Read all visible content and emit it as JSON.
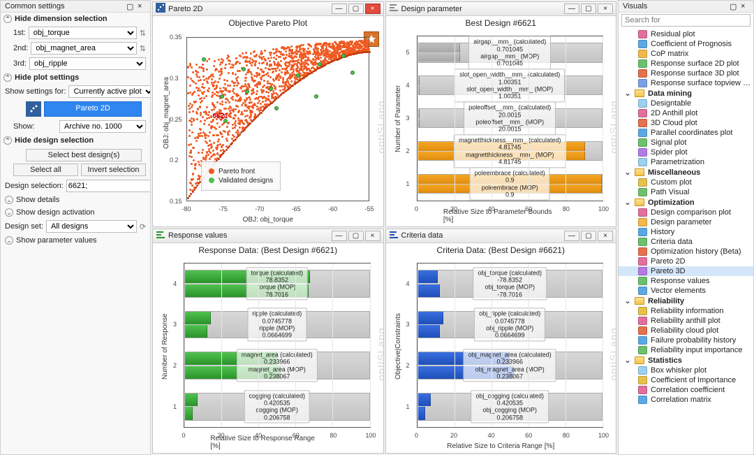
{
  "common": {
    "title": "Common settings",
    "hide_dim": "Hide dimension selection",
    "axes": {
      "first_lbl": "1st:",
      "first": "obj_torque",
      "second_lbl": "2nd:",
      "second": "obj_magnet_area",
      "third_lbl": "3rd:",
      "third": "obj_ripple"
    },
    "hide_plot": "Hide plot settings",
    "show_settings_lbl": "Show settings for:",
    "show_settings_val": "Currently active plot",
    "pareto_btn": "Pareto 2D",
    "show_lbl": "Show:",
    "show_val": "Archive no. 1000",
    "hide_design": "Hide design selection",
    "select_best": "Select best design(s)",
    "select_all": "Select all",
    "invert_sel": "Invert selection",
    "design_sel_lbl": "Design selection:",
    "design_sel_val": "6621;",
    "show_details": "Show details",
    "show_activation": "Show design activation",
    "design_set_lbl": "Design set:",
    "design_set_val": "All designs",
    "show_param": "Show parameter values"
  },
  "watermark": "optiSLang",
  "windows": {
    "pareto": {
      "title": "Pareto 2D",
      "chart_title": "Objective Pareto Plot",
      "xlabel": "OBJ: obj_torque",
      "ylabel": "OBJ: obj_magnet_area",
      "xticks": [
        "-80",
        "-75",
        "-70",
        "-65",
        "-60",
        "-55"
      ],
      "yticks": [
        "0.15",
        "0.2",
        "0.25",
        "0.3",
        "0.35"
      ],
      "legend": {
        "front": "Pareto front",
        "validated": "Validated designs"
      },
      "callout": "6621",
      "colors": {
        "points": "#f05a22",
        "validated": "#4fc24f",
        "legend_border": "#c8c8c8"
      }
    },
    "design_param": {
      "title": "Design parameter",
      "chart_title": "Best Design #6621",
      "ylabel": "Number of Parameter",
      "xlabel": "Relative Size to Parameter Bounds [%]",
      "xticks": [
        "0",
        "20",
        "40",
        "60",
        "80",
        "100"
      ],
      "rows": [
        {
          "y": 5,
          "calc_lbl": "airgap__mm_ (calculated)",
          "calc_v": "0.701045",
          "mop_lbl": "airgap__mm_ (MOP)",
          "mop_v": "0.701045",
          "calc_w": 23,
          "mop_w": 23,
          "c": "#bfbfbf",
          "c2": "#a8a8a8"
        },
        {
          "y": 4,
          "calc_lbl": "slot_open_width__mm_ (calculated)",
          "calc_v": "1.00351",
          "mop_lbl": "slot_open_width__mm_ (MOP)",
          "mop_v": "1.00351",
          "calc_w": 1,
          "mop_w": 1,
          "c": "#bfbfbf",
          "c2": "#a8a8a8"
        },
        {
          "y": 3,
          "calc_lbl": "poleoffset__mm_ (calculated)",
          "calc_v": "20.0015",
          "mop_lbl": "poleoffset__mm_ (MOP)",
          "mop_v": "20.0015",
          "calc_w": 1,
          "mop_w": 1,
          "c": "#bfbfbf",
          "c2": "#a8a8a8"
        },
        {
          "y": 2,
          "calc_lbl": "magnetthickness__mm_ (calculated)",
          "calc_v": "4.81745",
          "mop_lbl": "magnetthickness__mm_ (MOP)",
          "mop_v": "4.81745",
          "calc_w": 91,
          "mop_w": 91,
          "c": "#f5a623",
          "c2": "#e08c0e"
        },
        {
          "y": 1,
          "calc_lbl": "poleembrace (calculated)",
          "calc_v": "0.9",
          "mop_lbl": "poleembrace (MOP)",
          "mop_v": "0.9",
          "calc_w": 100,
          "mop_w": 100,
          "c": "#f5a623",
          "c2": "#e08c0e"
        }
      ]
    },
    "response": {
      "title": "Response values",
      "chart_title": "Response Data: (Best Design #6621)",
      "ylabel": "Number of Response",
      "xlabel": "Relative Size to Response Range [%]",
      "xticks": [
        "0",
        "20",
        "40",
        "60",
        "80",
        "100"
      ],
      "rows": [
        {
          "y": 4,
          "calc_lbl": "torque (calculated)",
          "calc_v": "78.8352",
          "mop_lbl": "torque (MOP)",
          "mop_v": "78.7016",
          "calc_w": 68,
          "mop_w": 67,
          "c": "#4fc24f",
          "c2": "#2a922a"
        },
        {
          "y": 3,
          "calc_lbl": "ripple (calculated)",
          "calc_v": "0.0745778",
          "mop_lbl": "ripple (MOP)",
          "mop_v": "0.0664699",
          "calc_w": 14,
          "mop_w": 12,
          "c": "#4fc24f",
          "c2": "#2a922a"
        },
        {
          "y": 2,
          "calc_lbl": "magnet_area (calculated)",
          "calc_v": "0.233966",
          "mop_lbl": "magnet_area (MOP)",
          "mop_v": "0.238067",
          "calc_w": 50,
          "mop_w": 52,
          "c": "#4fc24f",
          "c2": "#2a922a"
        },
        {
          "y": 1,
          "calc_lbl": "cogging (calculated)",
          "calc_v": "0.420535",
          "mop_lbl": "cogging (MOP)",
          "mop_v": "0.206758",
          "calc_w": 7,
          "mop_w": 4,
          "c": "#4fc24f",
          "c2": "#2a922a"
        }
      ]
    },
    "criteria": {
      "title": "Criteria data",
      "chart_title": "Criteria Data: (Best Design #6621)",
      "ylabel": "Objective|Constraints",
      "xlabel": "Relative Size to Criteria Range [%]",
      "xticks": [
        "0",
        "20",
        "40",
        "60",
        "80",
        "100"
      ],
      "rows": [
        {
          "y": 4,
          "calc_lbl": "obj_torque (calculated)",
          "calc_v": "-78.8352",
          "mop_lbl": "obj_torque (MOP)",
          "mop_v": "-78.7016",
          "calc_w": 11,
          "mop_w": 12,
          "c": "#3a6fe0",
          "c2": "#1f4fb8"
        },
        {
          "y": 3,
          "calc_lbl": "obj_ripple (calculated)",
          "calc_v": "0.0745778",
          "mop_lbl": "obj_ripple (MOP)",
          "mop_v": "0.0664699",
          "calc_w": 14,
          "mop_w": 12,
          "c": "#3a6fe0",
          "c2": "#1f4fb8"
        },
        {
          "y": 2,
          "calc_lbl": "obj_magnet_area (calculated)",
          "calc_v": "0.233966",
          "mop_lbl": "obj_magnet_area (MOP)",
          "mop_v": "0.238067",
          "calc_w": 50,
          "mop_w": 52,
          "c": "#3a6fe0",
          "c2": "#1f4fb8"
        },
        {
          "y": 1,
          "calc_lbl": "obj_cogging (calculated)",
          "calc_v": "0.420535",
          "mop_lbl": "obj_cogging (MOP)",
          "mop_v": "0.206758",
          "calc_w": 7,
          "mop_w": 4,
          "c": "#3a6fe0",
          "c2": "#1f4fb8"
        }
      ]
    }
  },
  "visuals": {
    "title": "Visuals",
    "search_ph": "Search for",
    "tree": [
      {
        "t": "leaf",
        "lbl": "Residual plot",
        "ic": "#e36f9d"
      },
      {
        "t": "leaf",
        "lbl": "Coefficient of Prognosis",
        "ic": "#5aa9e6"
      },
      {
        "t": "leaf",
        "lbl": "CoP matrix",
        "ic": "#f2b84b"
      },
      {
        "t": "leaf",
        "lbl": "Response surface 2D plot",
        "ic": "#6cc26c"
      },
      {
        "t": "leaf",
        "lbl": "Response surface 3D plot",
        "ic": "#e6704b"
      },
      {
        "t": "leaf",
        "lbl": "Response surface topview …",
        "ic": "#7a9fe6"
      },
      {
        "t": "hdr",
        "lbl": "Data mining"
      },
      {
        "t": "sub",
        "lbl": "Designtable",
        "ic": "#9bd1f0"
      },
      {
        "t": "sub",
        "lbl": "2D Anthill plot",
        "ic": "#e36f9d"
      },
      {
        "t": "sub",
        "lbl": "3D Cloud plot",
        "ic": "#e6704b"
      },
      {
        "t": "sub",
        "lbl": "Parallel coordinates plot",
        "ic": "#5aa9e6"
      },
      {
        "t": "sub",
        "lbl": "Signal plot",
        "ic": "#6cc26c"
      },
      {
        "t": "sub",
        "lbl": "Spider plot",
        "ic": "#b47ae6"
      },
      {
        "t": "sub",
        "lbl": "Parametrization",
        "ic": "#9bd1f0"
      },
      {
        "t": "hdr",
        "lbl": "Miscellaneous"
      },
      {
        "t": "sub",
        "lbl": "Custom plot",
        "ic": "#e6c24b"
      },
      {
        "t": "sub",
        "lbl": "Path Visual",
        "ic": "#6cc26c"
      },
      {
        "t": "hdr",
        "lbl": "Optimization"
      },
      {
        "t": "sub",
        "lbl": "Design comparison plot",
        "ic": "#e36f9d"
      },
      {
        "t": "sub",
        "lbl": "Design parameter",
        "ic": "#f2b84b"
      },
      {
        "t": "sub",
        "lbl": "History",
        "ic": "#5aa9e6"
      },
      {
        "t": "sub",
        "lbl": "Criteria data",
        "ic": "#6cc26c"
      },
      {
        "t": "sub",
        "lbl": "Optimization history (Beta)",
        "ic": "#e6704b"
      },
      {
        "t": "sub",
        "lbl": "Pareto 2D",
        "ic": "#e36f9d"
      },
      {
        "t": "sub",
        "lbl": "Pareto 3D",
        "ic": "#b47ae6",
        "sel": true
      },
      {
        "t": "sub",
        "lbl": "Response values",
        "ic": "#6cc26c"
      },
      {
        "t": "sub",
        "lbl": "Vector elements",
        "ic": "#5aa9e6"
      },
      {
        "t": "hdr",
        "lbl": "Reliability"
      },
      {
        "t": "sub",
        "lbl": "Reliability information",
        "ic": "#e6c24b"
      },
      {
        "t": "sub",
        "lbl": "Reliability anthill plot",
        "ic": "#e36f9d"
      },
      {
        "t": "sub",
        "lbl": "Reliability cloud plot",
        "ic": "#e6704b"
      },
      {
        "t": "sub",
        "lbl": "Failure probability history",
        "ic": "#5aa9e6"
      },
      {
        "t": "sub",
        "lbl": "Reliability input importance",
        "ic": "#6cc26c"
      },
      {
        "t": "hdr",
        "lbl": "Statistics"
      },
      {
        "t": "sub",
        "lbl": "Box whisker plot",
        "ic": "#9bd1f0"
      },
      {
        "t": "sub",
        "lbl": "Coefficient of Importance",
        "ic": "#e6c24b"
      },
      {
        "t": "sub",
        "lbl": "Correlation coefficient",
        "ic": "#e36f9d"
      },
      {
        "t": "sub",
        "lbl": "Correlation matrix",
        "ic": "#5aa9e6"
      }
    ]
  }
}
